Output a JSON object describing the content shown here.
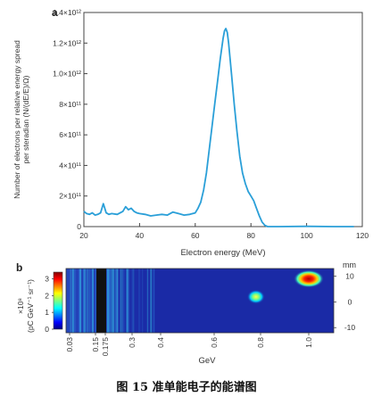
{
  "caption": "图 15   准单能电子的能谱图",
  "chart_data": [
    {
      "panel": "a",
      "type": "line",
      "xlabel": "Electron energy (MeV)",
      "ylabel_line1": "Number of electrons per relative energy spread",
      "ylabel_line2": "per steradian (N/(dE/E)/Ω)",
      "xlim": [
        20,
        120
      ],
      "ylim": [
        0,
        1400000000000.0
      ],
      "x_ticks": [
        "20",
        "40",
        "60",
        "80",
        "100",
        "120"
      ],
      "y_ticks": [
        "0",
        "2×10¹¹",
        "4×10¹¹",
        "6×10¹¹",
        "8×10¹¹",
        "1.0×10¹²",
        "1.2×10¹²",
        "1.4×10¹²"
      ],
      "series_color": "#2a9fd8",
      "x": [
        20,
        21,
        22,
        23,
        24,
        25,
        26,
        27,
        27.5,
        28,
        29,
        30,
        32,
        34,
        35,
        36,
        37,
        38,
        39,
        40,
        42,
        44,
        46,
        48,
        50,
        52,
        54,
        56,
        58,
        60,
        61,
        62,
        63,
        64,
        65,
        66,
        67,
        68,
        69,
        70,
        70.5,
        71,
        71.5,
        72,
        72.5,
        73,
        74,
        75,
        76,
        77,
        78,
        79,
        80,
        81,
        82,
        83,
        84,
        85,
        86,
        88,
        90,
        100,
        110,
        117
      ],
      "y": [
        100000000000.0,
        85000000000.0,
        80000000000.0,
        90000000000.0,
        75000000000.0,
        80000000000.0,
        90000000000.0,
        150000000000.0,
        120000000000.0,
        90000000000.0,
        80000000000.0,
        85000000000.0,
        80000000000.0,
        100000000000.0,
        130000000000.0,
        110000000000.0,
        120000000000.0,
        100000000000.0,
        90000000000.0,
        85000000000.0,
        80000000000.0,
        70000000000.0,
        75000000000.0,
        80000000000.0,
        75000000000.0,
        95000000000.0,
        85000000000.0,
        75000000000.0,
        80000000000.0,
        90000000000.0,
        120000000000.0,
        160000000000.0,
        240000000000.0,
        350000000000.0,
        500000000000.0,
        650000000000.0,
        800000000000.0,
        950000000000.0,
        1100000000000.0,
        1230000000000.0,
        1280000000000.0,
        1295000000000.0,
        1270000000000.0,
        1200000000000.0,
        1100000000000.0,
        1000000000000.0,
        800000000000.0,
        620000000000.0,
        460000000000.0,
        350000000000.0,
        280000000000.0,
        230000000000.0,
        200000000000.0,
        170000000000.0,
        120000000000.0,
        70000000000.0,
        30000000000.0,
        8000000000.0,
        0.0,
        0.0,
        0.0,
        2000000000.0,
        0.0,
        0.0
      ]
    },
    {
      "panel": "b",
      "type": "heatmap",
      "xlabel": "GeV",
      "x_ticks": [
        "0.03",
        "0.15",
        "0.175",
        "0.3",
        "0.4",
        "0.6",
        "0.8",
        "1.0"
      ],
      "colorbar_label_line1": "×10⁸",
      "colorbar_label_line2": "(pC GeV⁻¹ sr⁻¹)",
      "colorbar_ticks": [
        "0",
        "1",
        "2",
        "3"
      ],
      "colorbar_range": [
        0,
        3.4
      ],
      "right_axis_label": "mm",
      "right_ticks": [
        "10",
        "0",
        "-10"
      ],
      "right_range": [
        -12,
        13
      ],
      "background_color": "#1a2aa6",
      "blobs": [
        {
          "x_gev": 0.78,
          "y_mm": 2,
          "peak": 2.3
        },
        {
          "x_gev": 1.0,
          "y_mm": 9,
          "peak": 3.4
        }
      ]
    }
  ]
}
